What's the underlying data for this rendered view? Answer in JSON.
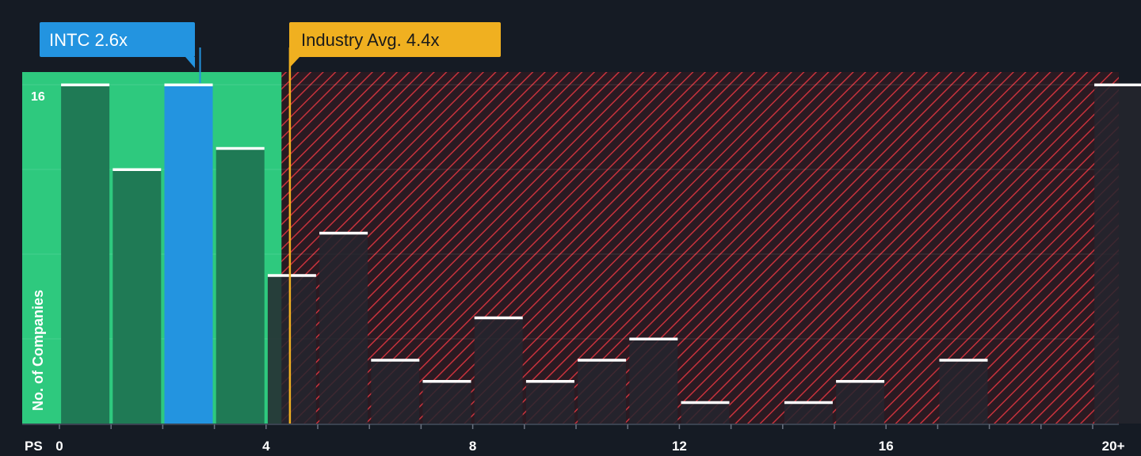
{
  "chart_data": {
    "type": "bar",
    "xlabel": "PS",
    "ylabel": "No. of Companies",
    "x_ticks": [
      "0",
      "4",
      "8",
      "12",
      "16",
      "20+"
    ],
    "y_ticks": [
      "16"
    ],
    "ylim": [
      0,
      16.5
    ],
    "bins": [
      {
        "x": 0.5,
        "value": 16
      },
      {
        "x": 1.5,
        "value": 12
      },
      {
        "x": 2.5,
        "value": 16
      },
      {
        "x": 3.5,
        "value": 13
      },
      {
        "x": 4.5,
        "value": 7
      },
      {
        "x": 5.5,
        "value": 9
      },
      {
        "x": 6.5,
        "value": 3
      },
      {
        "x": 7.5,
        "value": 2
      },
      {
        "x": 8.5,
        "value": 5
      },
      {
        "x": 9.5,
        "value": 2
      },
      {
        "x": 10.5,
        "value": 3
      },
      {
        "x": 11.5,
        "value": 4
      },
      {
        "x": 12.5,
        "value": 1
      },
      {
        "x": 13.5,
        "value": 0
      },
      {
        "x": 14.5,
        "value": 1
      },
      {
        "x": 15.5,
        "value": 2
      },
      {
        "x": 16.5,
        "value": 0
      },
      {
        "x": 17.5,
        "value": 3
      },
      {
        "x": 18.5,
        "value": 0
      },
      {
        "x": 19.5,
        "value": 0
      },
      {
        "x": 20.5,
        "value": 16
      }
    ],
    "company": {
      "label": "INTC 2.6x",
      "value": 2.6
    },
    "industry_avg": {
      "label": "Industry Avg. 4.4x",
      "value": 4.4
    },
    "fair_range_max": 4.3,
    "colors": {
      "background": "#151b24",
      "fair_zone": "#2ec97e",
      "fair_bar": "#1f7a55",
      "company_bar": "#2394e0",
      "overvalued_hatch": "#c8323c",
      "dark_bar": "#24262e",
      "industry": "#f0b020",
      "cap": "#ffffff",
      "text": "#ffffff"
    }
  }
}
